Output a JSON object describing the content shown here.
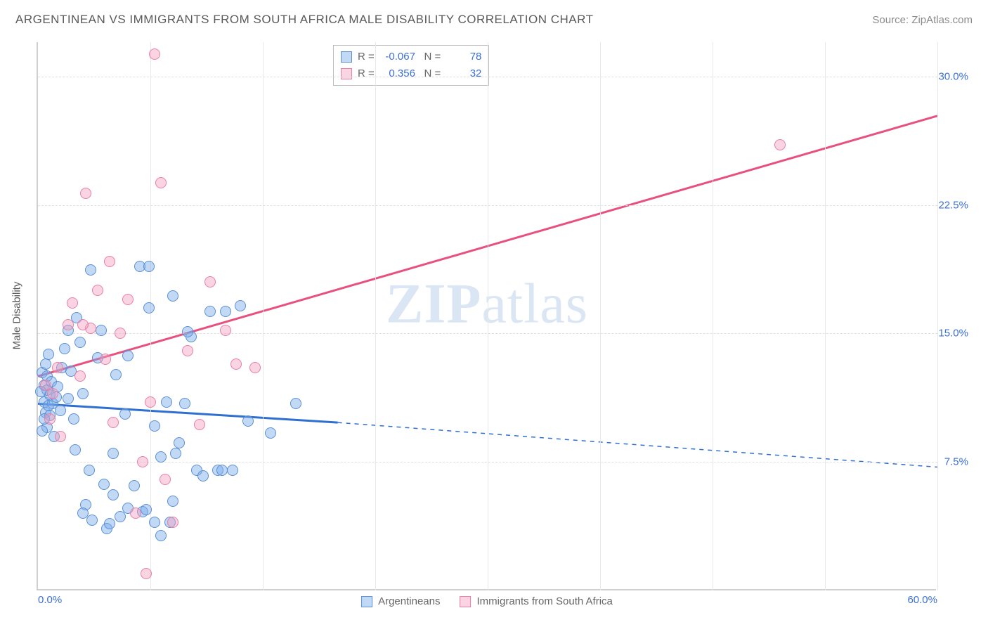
{
  "header": {
    "title": "ARGENTINEAN VS IMMIGRANTS FROM SOUTH AFRICA MALE DISABILITY CORRELATION CHART",
    "source_label": "Source:",
    "source_value": "ZipAtlas.com"
  },
  "watermark": {
    "left": "ZIP",
    "right": "atlas"
  },
  "chart": {
    "type": "scatter",
    "y_axis_title": "Male Disability",
    "xlim": [
      0,
      60
    ],
    "ylim": [
      0,
      32
    ],
    "background_color": "#ffffff",
    "grid_color": "#e0e0e0",
    "axis_color": "#cfcfcf",
    "tick_label_color": "#3b6fd6",
    "y_ticks": [
      {
        "val": 7.5,
        "label": "7.5%"
      },
      {
        "val": 15.0,
        "label": "15.0%"
      },
      {
        "val": 22.5,
        "label": "22.5%"
      },
      {
        "val": 30.0,
        "label": "30.0%"
      }
    ],
    "x_ticks": [
      {
        "val": 0,
        "label": "0.0%"
      },
      {
        "val": 60,
        "label": "60.0%"
      }
    ],
    "x_grid_vals": [
      7.5,
      15,
      22.5,
      30,
      37.5,
      45,
      52.5,
      60
    ],
    "series": [
      {
        "name": "Argentineans",
        "fill": "rgba(120,170,235,0.45)",
        "stroke": "#5b8fd6",
        "line_color": "#2f6fd0",
        "marker_radius": 8,
        "r_label": "R",
        "r_value": "-0.067",
        "n_label": "N",
        "n_value": "78",
        "regression": {
          "x1": 0,
          "y1": 10.9,
          "x2": 20,
          "y2": 9.8,
          "x3": 60,
          "y3": 7.2,
          "solid_until_x": 20
        },
        "points": [
          [
            0.3,
            12.7
          ],
          [
            0.4,
            11.0
          ],
          [
            0.5,
            10.4
          ],
          [
            0.6,
            9.5
          ],
          [
            0.7,
            10.8
          ],
          [
            0.8,
            11.4
          ],
          [
            0.5,
            13.2
          ],
          [
            0.4,
            12.0
          ],
          [
            0.6,
            11.7
          ],
          [
            0.8,
            10.2
          ],
          [
            1.0,
            10.9
          ],
          [
            1.2,
            11.3
          ],
          [
            0.3,
            9.3
          ],
          [
            0.4,
            10.0
          ],
          [
            0.2,
            11.6
          ],
          [
            0.6,
            12.5
          ],
          [
            0.7,
            13.8
          ],
          [
            0.9,
            12.2
          ],
          [
            1.1,
            9.0
          ],
          [
            1.3,
            11.9
          ],
          [
            1.5,
            10.5
          ],
          [
            1.6,
            13.0
          ],
          [
            1.8,
            14.1
          ],
          [
            2.0,
            11.2
          ],
          [
            2.2,
            12.8
          ],
          [
            2.4,
            10.0
          ],
          [
            2.5,
            8.2
          ],
          [
            2.6,
            15.9
          ],
          [
            2.8,
            14.5
          ],
          [
            3.0,
            11.5
          ],
          [
            3.2,
            5.0
          ],
          [
            3.4,
            7.0
          ],
          [
            3.5,
            18.7
          ],
          [
            3.6,
            4.1
          ],
          [
            4.0,
            13.6
          ],
          [
            4.2,
            15.2
          ],
          [
            4.4,
            6.2
          ],
          [
            4.6,
            3.6
          ],
          [
            5.0,
            8.0
          ],
          [
            5.2,
            12.6
          ],
          [
            5.5,
            4.3
          ],
          [
            5.8,
            10.3
          ],
          [
            6.0,
            13.7
          ],
          [
            6.4,
            6.1
          ],
          [
            6.8,
            18.9
          ],
          [
            7.0,
            4.6
          ],
          [
            7.4,
            16.5
          ],
          [
            7.4,
            18.9
          ],
          [
            7.8,
            9.6
          ],
          [
            7.8,
            4.0
          ],
          [
            8.2,
            7.8
          ],
          [
            8.2,
            3.2
          ],
          [
            8.6,
            11.0
          ],
          [
            9.0,
            5.2
          ],
          [
            9.0,
            17.2
          ],
          [
            9.4,
            8.6
          ],
          [
            9.8,
            10.9
          ],
          [
            10.2,
            14.8
          ],
          [
            10.6,
            7.0
          ],
          [
            11.0,
            6.7
          ],
          [
            11.5,
            16.3
          ],
          [
            12.0,
            7.0
          ],
          [
            12.3,
            7.0
          ],
          [
            12.5,
            16.3
          ],
          [
            13.0,
            7.0
          ],
          [
            13.5,
            16.6
          ],
          [
            14.0,
            9.9
          ],
          [
            15.5,
            9.2
          ],
          [
            17.2,
            10.9
          ],
          [
            2.0,
            15.2
          ],
          [
            3.0,
            4.5
          ],
          [
            4.8,
            3.9
          ],
          [
            5.0,
            5.6
          ],
          [
            6.0,
            4.8
          ],
          [
            7.2,
            4.7
          ],
          [
            8.8,
            4.0
          ],
          [
            9.2,
            8.0
          ],
          [
            10.0,
            15.1
          ]
        ]
      },
      {
        "name": "Immigrants from South Africa",
        "fill": "rgba(245,160,190,0.45)",
        "stroke": "#e87fa5",
        "line_color": "#e8517f",
        "marker_radius": 8,
        "r_label": "R",
        "r_value": "0.356",
        "n_label": "N",
        "n_value": "32",
        "regression": {
          "x1": 0,
          "y1": 12.5,
          "x2": 60,
          "y2": 27.7,
          "solid_until_x": 60
        },
        "points": [
          [
            0.5,
            12.0
          ],
          [
            0.8,
            10.0
          ],
          [
            1.0,
            11.5
          ],
          [
            1.3,
            13.0
          ],
          [
            1.5,
            9.0
          ],
          [
            2.0,
            15.5
          ],
          [
            2.3,
            16.8
          ],
          [
            2.8,
            12.5
          ],
          [
            3.2,
            23.2
          ],
          [
            3.5,
            15.3
          ],
          [
            4.0,
            17.5
          ],
          [
            4.5,
            13.5
          ],
          [
            4.8,
            19.2
          ],
          [
            5.0,
            9.8
          ],
          [
            5.5,
            15.0
          ],
          [
            6.0,
            17.0
          ],
          [
            6.5,
            4.5
          ],
          [
            7.0,
            7.5
          ],
          [
            7.5,
            11.0
          ],
          [
            7.8,
            31.3
          ],
          [
            8.2,
            23.8
          ],
          [
            8.5,
            6.5
          ],
          [
            9.0,
            4.0
          ],
          [
            10.0,
            14.0
          ],
          [
            10.8,
            9.7
          ],
          [
            11.5,
            18.0
          ],
          [
            12.5,
            15.2
          ],
          [
            13.2,
            13.2
          ],
          [
            14.5,
            13.0
          ],
          [
            7.2,
            1.0
          ],
          [
            49.5,
            26.0
          ],
          [
            3.0,
            15.5
          ]
        ]
      }
    ]
  }
}
